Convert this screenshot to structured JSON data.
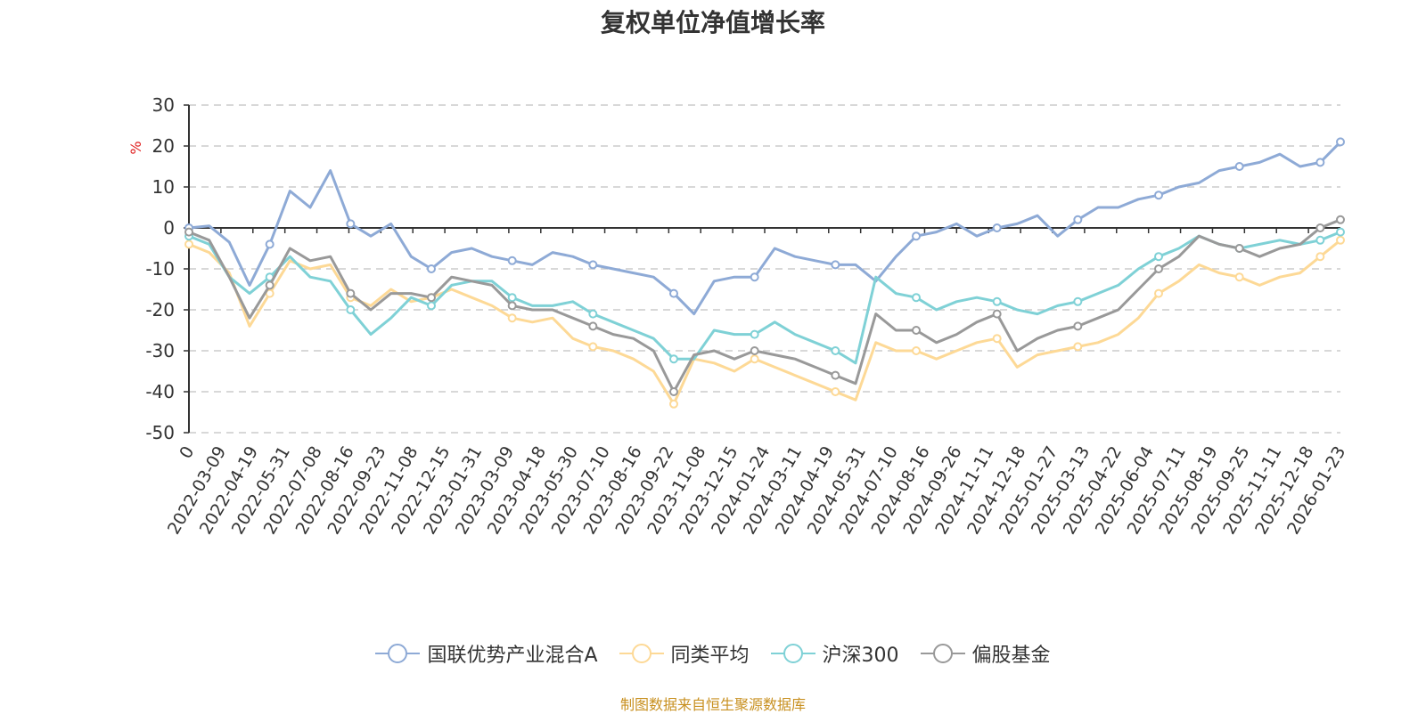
{
  "chart_data": {
    "type": "line",
    "title": "复权单位净值增长率",
    "ylabel": "%",
    "ylim": [
      -50,
      30
    ],
    "yticks": [
      30,
      20,
      10,
      0,
      -10,
      -20,
      -30,
      -40,
      -50
    ],
    "x_tick_labels": [
      "0",
      "2022-03-09",
      "2022-04-19",
      "2022-05-31",
      "2022-07-08",
      "2022-08-16",
      "2022-09-23",
      "2022-11-08",
      "2022-12-15",
      "2023-01-31",
      "2023-03-09",
      "2023-04-18",
      "2023-05-30",
      "2023-07-10",
      "2023-08-16",
      "2023-09-22",
      "2023-11-08",
      "2023-12-15",
      "2024-01-24",
      "2024-03-11",
      "2024-04-19",
      "2024-05-31",
      "2024-07-10",
      "2024-08-16",
      "2024-09-26",
      "2024-11-11",
      "2024-12-18",
      "2025-01-27",
      "2025-03-13",
      "2025-04-22",
      "2025-06-04",
      "2025-07-11",
      "2025-08-19",
      "2025-09-25",
      "2025-11-11",
      "2025-12-18",
      "2026-01-23"
    ],
    "series": [
      {
        "name": "国联优势产业混合A",
        "color": "#8eaad6",
        "values": [
          0,
          0.5,
          -3.5,
          -14,
          -4,
          9,
          5,
          14,
          1,
          -2,
          1,
          -7,
          -10,
          -6,
          -5,
          -7,
          -8,
          -9,
          -6,
          -7,
          -9,
          -10,
          -11,
          -12,
          -16,
          -21,
          -13,
          -12,
          -12,
          -5,
          -7,
          -8,
          -9,
          -9,
          -13,
          -7,
          -2,
          -1,
          1,
          -2,
          0,
          1,
          3,
          -2,
          2,
          5,
          5,
          7,
          8,
          10,
          11,
          14,
          15,
          16,
          18,
          15,
          16,
          21
        ]
      },
      {
        "name": "同类平均",
        "color": "#fdd996",
        "values": [
          -4,
          -6,
          -11,
          -24,
          -16,
          -8,
          -10,
          -9,
          -17,
          -19,
          -15,
          -18,
          -17,
          -15,
          -17,
          -19,
          -22,
          -23,
          -22,
          -27,
          -29,
          -30,
          -32,
          -35,
          -43,
          -32,
          -33,
          -35,
          -32,
          -34,
          -36,
          -38,
          -40,
          -42,
          -28,
          -30,
          -30,
          -32,
          -30,
          -28,
          -27,
          -34,
          -31,
          -30,
          -29,
          -28,
          -26,
          -22,
          -16,
          -13,
          -9,
          -11,
          -12,
          -14,
          -12,
          -11,
          -7,
          -3
        ]
      },
      {
        "name": "沪深300",
        "color": "#7fd1d6",
        "values": [
          -2,
          -4,
          -12,
          -16,
          -12,
          -7,
          -12,
          -13,
          -20,
          -26,
          -22,
          -17,
          -19,
          -14,
          -13,
          -13,
          -17,
          -19,
          -19,
          -18,
          -21,
          -23,
          -25,
          -27,
          -32,
          -32,
          -25,
          -26,
          -26,
          -23,
          -26,
          -28,
          -30,
          -33,
          -12,
          -16,
          -17,
          -20,
          -18,
          -17,
          -18,
          -20,
          -21,
          -19,
          -18,
          -16,
          -14,
          -10,
          -7,
          -5,
          -2,
          -4,
          -5,
          -4,
          -3,
          -4,
          -3,
          -1
        ]
      },
      {
        "name": "偏股基金",
        "color": "#999999",
        "values": [
          -1,
          -3,
          -12,
          -22,
          -14,
          -5,
          -8,
          -7,
          -16,
          -20,
          -16,
          -16,
          -17,
          -12,
          -13,
          -14,
          -19,
          -20,
          -20,
          -22,
          -24,
          -26,
          -27,
          -30,
          -40,
          -31,
          -30,
          -32,
          -30,
          -31,
          -32,
          -34,
          -36,
          -38,
          -21,
          -25,
          -25,
          -28,
          -26,
          -23,
          -21,
          -30,
          -27,
          -25,
          -24,
          -22,
          -20,
          -15,
          -10,
          -7,
          -2,
          -4,
          -5,
          -7,
          -5,
          -4,
          0,
          2
        ]
      }
    ]
  },
  "footer": {
    "source": "制图数据来自恒生聚源数据库"
  }
}
